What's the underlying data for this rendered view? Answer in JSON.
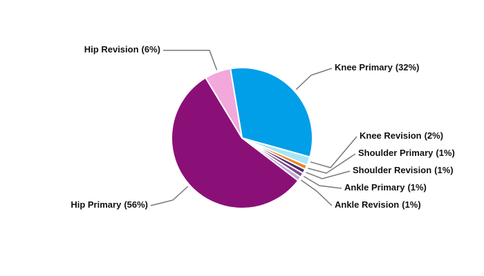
{
  "chart_data": {
    "type": "pie",
    "categories": [
      "Knee Primary",
      "Knee Revision",
      "Shoulder Primary",
      "Shoulder Revision",
      "Ankle Primary",
      "Ankle Revision",
      "Hip Primary",
      "Hip Revision"
    ],
    "values": [
      32,
      2,
      1,
      1,
      1,
      1,
      56,
      6
    ],
    "value_labels": [
      "(32%)",
      "(2%)",
      "(1%)",
      "(1%)",
      "(1%)",
      "(1%)",
      "(56%)",
      "(6%)"
    ],
    "colors": [
      "#009fe8",
      "#a6e6f8",
      "#f08420",
      "#4e2a6e",
      "#7a4a8c",
      "#c4a6d8",
      "#8a1078",
      "#f2a8da"
    ]
  }
}
